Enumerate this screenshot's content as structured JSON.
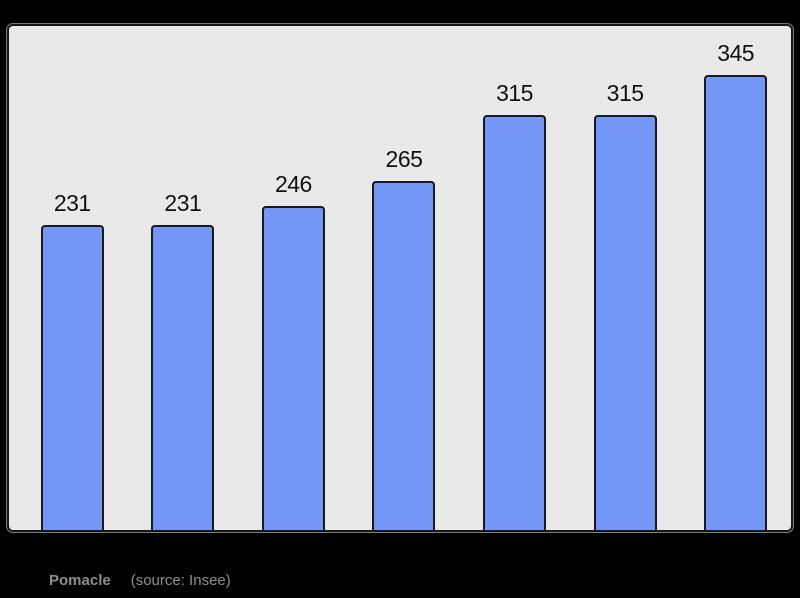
{
  "caption": {
    "name": "Pomacle",
    "source": "(source: Insee)"
  },
  "colors": {
    "background": "#000000",
    "panel_background": "#e9e9e9",
    "panel_border": "#161616",
    "bar_fill": "#7496f7",
    "bar_border": "#1a1a1a",
    "value_label": "#111111",
    "caption_text": "#8e8e8e"
  },
  "chart_data": {
    "type": "bar",
    "values": [
      231,
      231,
      246,
      265,
      315,
      315,
      345
    ],
    "data_labels": [
      "231",
      "231",
      "246",
      "265",
      "315",
      "315",
      "345"
    ],
    "title": "",
    "xlabel": "",
    "ylabel": "",
    "ylim": [
      0,
      381
    ],
    "grid": false,
    "legend": false,
    "value_labels_position": "above-bars",
    "x_tick_labels_shown": false,
    "y_axis_shown": false
  }
}
